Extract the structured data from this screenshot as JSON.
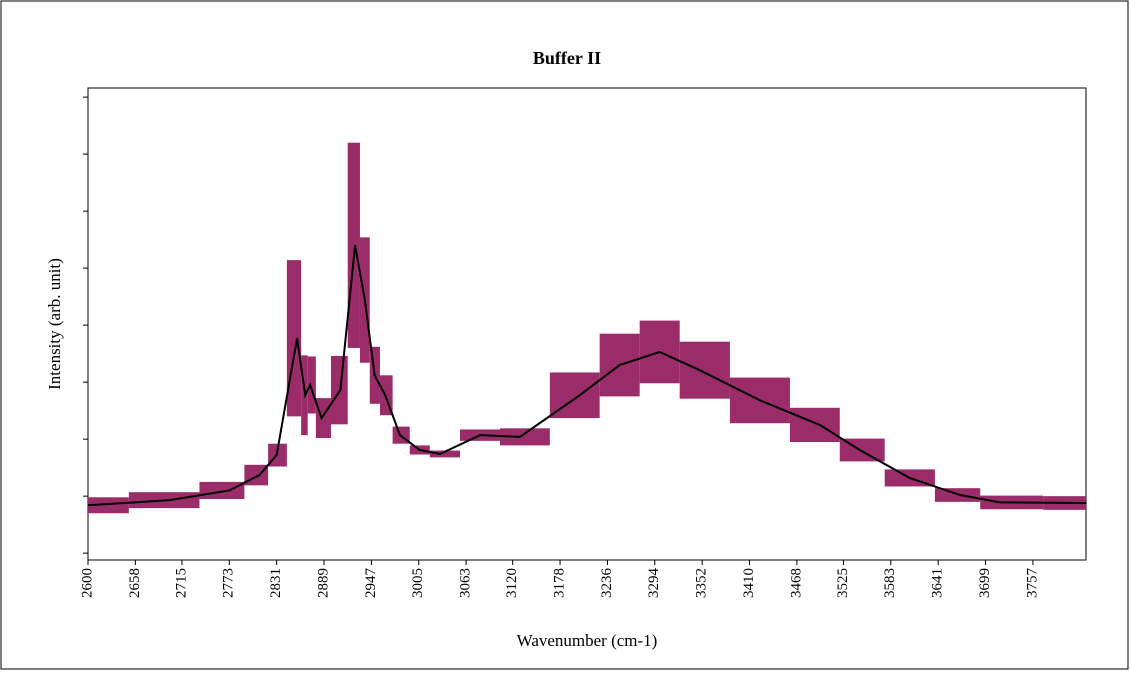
{
  "chart_data": {
    "type": "line",
    "title": "Buffer II",
    "xlabel": "Wavenumber (cm-1)",
    "ylabel": "Intensity (arb. unit)",
    "x": [
      2600,
      2700,
      2773,
      2810,
      2831,
      2856,
      2866,
      2872,
      2886,
      2909,
      2927,
      2939,
      2951,
      2964,
      2982,
      3006,
      3031,
      3080,
      3129,
      3202,
      3251,
      3300,
      3349,
      3423,
      3496,
      3545,
      3606,
      3668,
      3717,
      3822
    ],
    "values": [
      0.84,
      0.93,
      1.1,
      1.37,
      1.72,
      3.77,
      2.77,
      2.95,
      2.37,
      2.86,
      5.4,
      4.44,
      3.12,
      2.77,
      2.07,
      1.81,
      1.74,
      2.07,
      2.04,
      2.77,
      3.3,
      3.53,
      3.21,
      2.68,
      2.25,
      1.81,
      1.32,
      1.02,
      0.89,
      0.88
    ],
    "errors": [
      0.14,
      0.14,
      0.15,
      0.18,
      0.2,
      1.37,
      0.7,
      0.5,
      0.35,
      0.6,
      1.8,
      1.1,
      0.5,
      0.35,
      0.15,
      0.08,
      0.06,
      0.1,
      0.15,
      0.4,
      0.55,
      0.55,
      0.5,
      0.4,
      0.3,
      0.2,
      0.15,
      0.12,
      0.12,
      0.12
    ],
    "color": "#000000",
    "error_color": "#9b2c6a",
    "xlim": [
      2600,
      3822
    ],
    "xticks": [
      2600,
      2658,
      2715,
      2773,
      2831,
      2889,
      2947,
      3005,
      3063,
      3120,
      3178,
      3236,
      3294,
      3352,
      3410,
      3468,
      3525,
      3583,
      3641,
      3699,
      3757
    ],
    "ylim": [
      -0.12,
      8.16
    ],
    "yticks": [
      0,
      1,
      2,
      3,
      4,
      5,
      6,
      7,
      8
    ]
  }
}
